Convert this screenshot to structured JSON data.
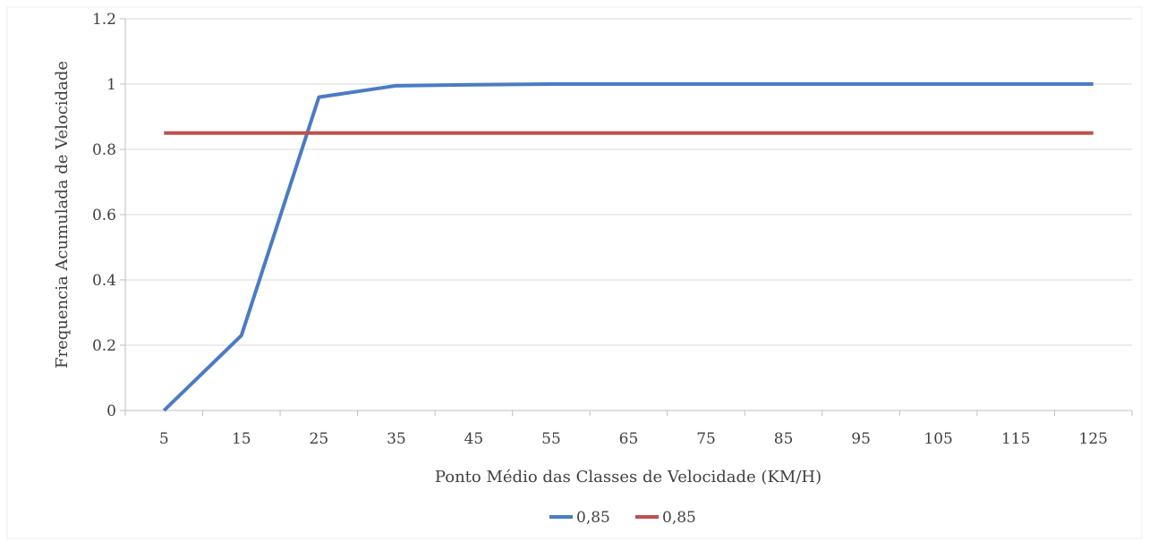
{
  "chart_data": {
    "type": "line",
    "xlabel": "Ponto Médio das Classes de Velocidade (KM/H)",
    "ylabel": "Frequencia Acumulada de Velocidade",
    "categories": [
      "5",
      "15",
      "25",
      "35",
      "45",
      "55",
      "65",
      "75",
      "85",
      "95",
      "105",
      "115",
      "125"
    ],
    "ylim": [
      0,
      1.2
    ],
    "yticks": [
      "0",
      "0.2",
      "0.4",
      "0.6",
      "0.8",
      "1",
      "1.2"
    ],
    "grid": true,
    "legend_position": "bottom",
    "series": [
      {
        "name": "0,85",
        "color": "#4a7cc2",
        "values": [
          0,
          0.23,
          0.96,
          0.995,
          0.998,
          1,
          1,
          1,
          1,
          1,
          1,
          1,
          1
        ]
      },
      {
        "name": "0,85",
        "color": "#c0504d",
        "values": [
          0.85,
          0.85,
          0.85,
          0.85,
          0.85,
          0.85,
          0.85,
          0.85,
          0.85,
          0.85,
          0.85,
          0.85,
          0.85
        ]
      }
    ]
  }
}
